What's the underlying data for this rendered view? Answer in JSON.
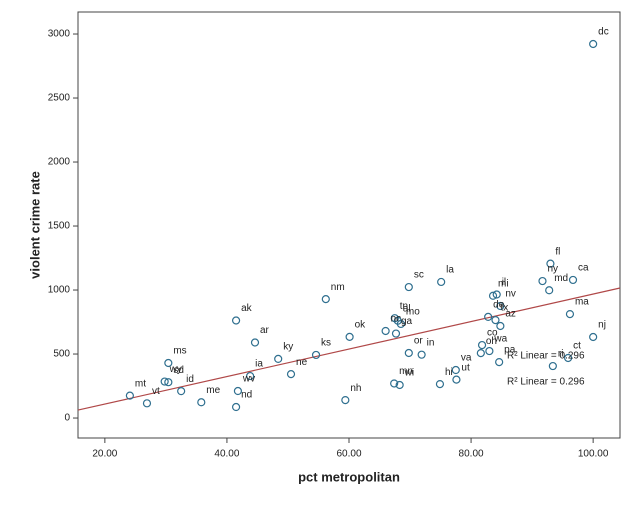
{
  "chart_data": {
    "type": "scatter",
    "xlabel": "pct metropolitan",
    "ylabel": "violent crime rate",
    "labels": [
      "dc",
      "fl",
      "ca",
      "ny",
      "md",
      "il",
      "mi",
      "nv",
      "tx",
      "sc",
      "la",
      "nm",
      "tn",
      "al",
      "ok",
      "nc",
      "mo",
      "ak",
      "ar",
      "ky",
      "ks",
      "ne",
      "ms",
      "wy",
      "ia",
      "wv",
      "nd",
      "sd",
      "mt",
      "vt",
      "id",
      "me",
      "nh",
      "wi",
      "mn",
      "ga",
      "or",
      "in",
      "va",
      "hi",
      "ut",
      "co",
      "wa",
      "de",
      "az",
      "oh",
      "pa",
      "ct",
      "ri",
      "ma",
      "nj"
    ],
    "x": [
      100,
      93,
      96.7,
      91.7,
      92.8,
      84.2,
      83.6,
      84.8,
      84,
      69.8,
      75.1,
      56.2,
      67.5,
      68,
      60.1,
      66,
      68.5,
      41.5,
      44.6,
      48.4,
      54.6,
      50.5,
      30.4,
      29.8,
      43.8,
      41.8,
      41.5,
      30.4,
      24.1,
      26.9,
      32.5,
      35.8,
      59.4,
      68.3,
      67.4,
      67.7,
      69.8,
      71.9,
      77.5,
      74.9,
      77.6,
      81.8,
      83,
      82.8,
      84.8,
      81.6,
      84.6,
      95.9,
      93.4,
      96.2,
      100
    ],
    "values": [
      2922,
      1206,
      1079,
      1070,
      998,
      965,
      955,
      875,
      765,
      1023,
      1063,
      929,
      780,
      760,
      634,
      680,
      735,
      762,
      590,
      462,
      493,
      343,
      430,
      285,
      328,
      211,
      86,
      280,
      175,
      115,
      210,
      123,
      140,
      258,
      270,
      660,
      508,
      495,
      375,
      265,
      300,
      570,
      523,
      790,
      719,
      507,
      437,
      469,
      406,
      812,
      633
    ],
    "color": "#2f6f8f",
    "fit_line": {
      "x": [
        15.6,
        104.4
      ],
      "y": [
        62,
        1016
      ],
      "color": "#b04848"
    },
    "annotations": [
      "R² Linear = 0.296",
      "R² Linear = 0.296"
    ],
    "xlim": [
      15.6,
      104.4
    ],
    "ylim": [
      -156,
      3172
    ],
    "xticks": [
      {
        "value": 20,
        "label": "20.00"
      },
      {
        "value": 40,
        "label": "40.00"
      },
      {
        "value": 60,
        "label": "60.00"
      },
      {
        "value": 80,
        "label": "80.00"
      },
      {
        "value": 100,
        "label": "100.00"
      }
    ],
    "yticks": [
      0,
      500,
      1000,
      1500,
      2000,
      2500,
      3000
    ]
  }
}
